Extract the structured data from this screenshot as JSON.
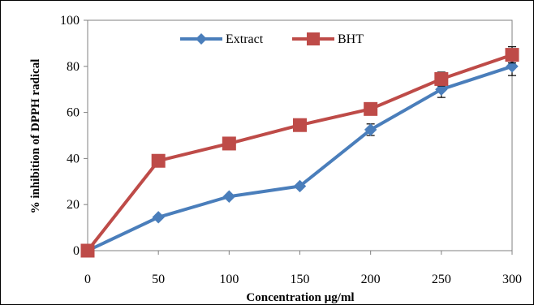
{
  "chart_data": {
    "type": "line",
    "title": "",
    "xlabel": "Concentration µg/ml",
    "ylabel": "% inhibition of DPPH radical",
    "x": [
      0,
      50,
      100,
      150,
      200,
      250,
      300
    ],
    "xlim": [
      0,
      300
    ],
    "ylim": [
      0,
      100
    ],
    "yticks": [
      0,
      20,
      40,
      60,
      80,
      100
    ],
    "xticks": [
      0,
      50,
      100,
      150,
      200,
      250,
      300
    ],
    "grid": false,
    "legend": "top-center",
    "series": [
      {
        "name": "Extract",
        "color": "#4a7ebb",
        "marker": "diamond",
        "values": [
          0,
          14.5,
          23.5,
          28,
          52.5,
          70,
          80
        ],
        "errors": [
          0,
          0,
          0,
          0,
          2.5,
          3.5,
          4
        ]
      },
      {
        "name": "BHT",
        "color": "#be4b48",
        "marker": "square",
        "values": [
          0,
          39,
          46.5,
          54.5,
          61.5,
          74.5,
          85
        ],
        "errors": [
          0,
          0,
          0,
          0,
          0,
          3,
          3.5
        ]
      }
    ]
  }
}
